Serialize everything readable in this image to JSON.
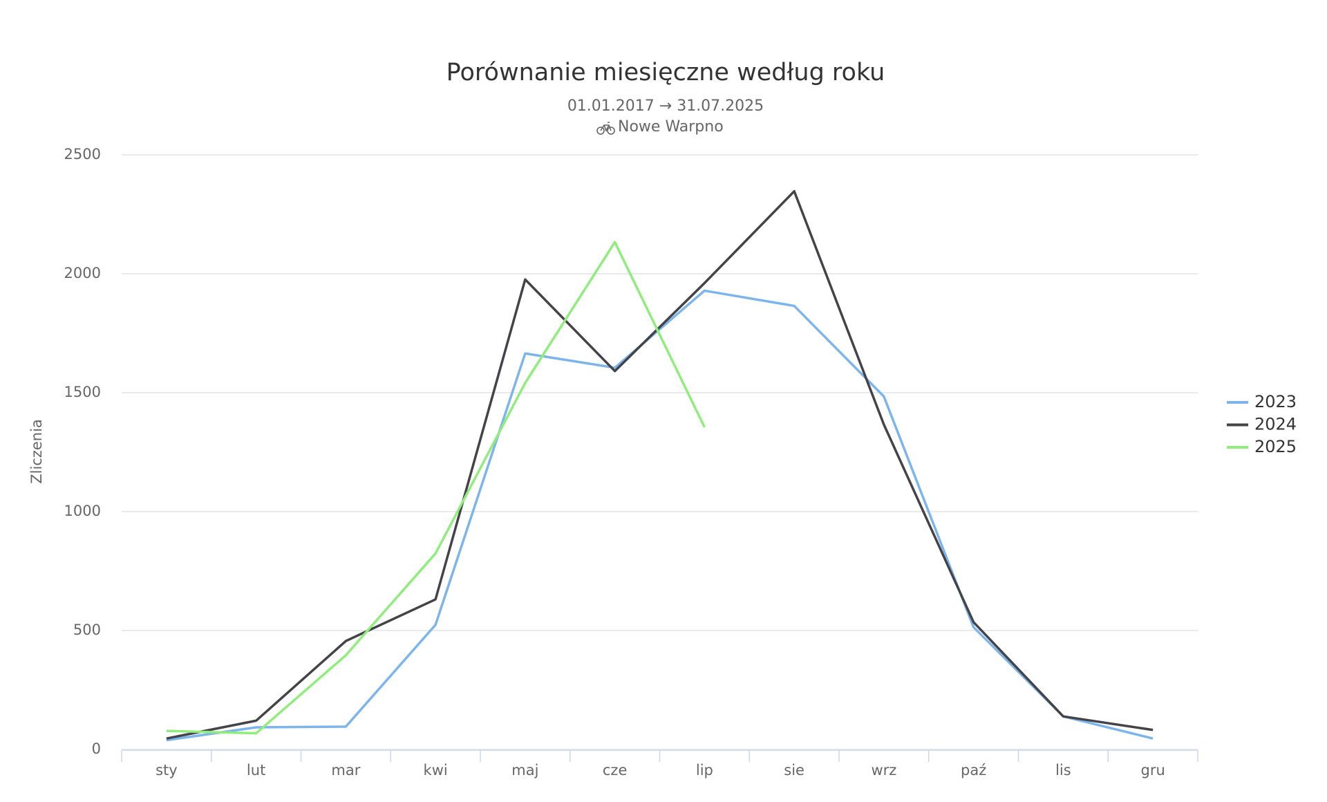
{
  "chart_data": {
    "type": "line",
    "title": "Porównanie miesięczne według roku",
    "subtitle": [
      "01.01.2017 → 31.07.2025",
      "Nowe Warpno"
    ],
    "y_label": "Zliczenia",
    "categories": [
      "sty",
      "lut",
      "mar",
      "kwi",
      "maj",
      "cze",
      "lip",
      "sie",
      "wrz",
      "paź",
      "lis",
      "gru"
    ],
    "series": [
      {
        "name": "2023",
        "color": "#7cb5ec",
        "values": [
          39,
          93,
          96,
          524,
          1665,
          1605,
          1929,
          1865,
          1484,
          514,
          139,
          46
        ]
      },
      {
        "name": "2024",
        "color": "#434348",
        "values": [
          46,
          121,
          456,
          631,
          1976,
          1591,
          1961,
          2347,
          1366,
          535,
          139,
          82
        ]
      },
      {
        "name": "2025",
        "color": "#90ed7d",
        "values": [
          78,
          68,
          396,
          824,
          1541,
          2133,
          1355,
          null,
          null,
          null,
          null,
          null
        ]
      }
    ],
    "ylim": [
      0,
      2500
    ],
    "yticks": [
      0,
      500,
      1000,
      1500,
      2000,
      2500
    ],
    "grid": true,
    "legend": "right"
  }
}
